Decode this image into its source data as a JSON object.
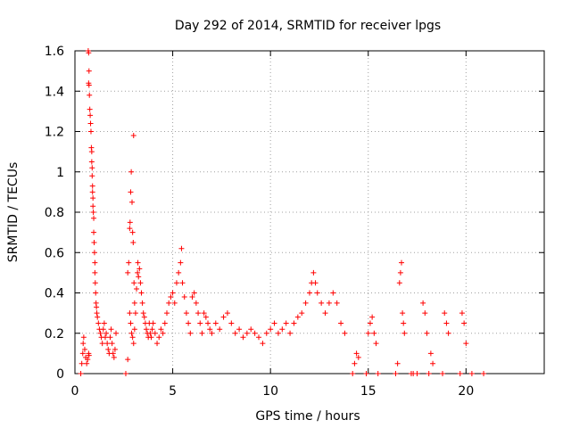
{
  "chart_data": {
    "type": "scatter",
    "title": "Day 292 of 2014, SRMTID for receiver lpgs",
    "xlabel": "GPS time / hours",
    "ylabel": "SRMTID / TECUs",
    "xlim": [
      0,
      24
    ],
    "ylim": [
      0,
      1.6
    ],
    "grid": true,
    "marker": "+",
    "marker_color": "#ff0000",
    "x_ticks": [
      0,
      5,
      10,
      15,
      20
    ],
    "x_tick_labels": [
      "0",
      "5",
      "10",
      "15",
      "20"
    ],
    "y_ticks": [
      0,
      0.2,
      0.4,
      0.6,
      0.8,
      1.0,
      1.2,
      1.4,
      1.6
    ],
    "y_tick_labels": [
      "0",
      "0.2",
      "0.4",
      "0.6",
      "0.8",
      "1",
      "1.2",
      "1.4",
      "1.6"
    ],
    "series": [
      {
        "name": "lpgs",
        "points": [
          [
            0.3,
            0.0
          ],
          [
            0.35,
            0.05
          ],
          [
            0.4,
            0.1
          ],
          [
            0.42,
            0.15
          ],
          [
            0.45,
            0.18
          ],
          [
            0.5,
            0.12
          ],
          [
            0.55,
            0.08
          ],
          [
            0.6,
            0.05
          ],
          [
            0.65,
            0.07
          ],
          [
            0.7,
            0.1
          ],
          [
            0.72,
            0.09
          ],
          [
            0.68,
            1.6
          ],
          [
            0.7,
            1.59
          ],
          [
            0.72,
            1.5
          ],
          [
            0.7,
            1.44
          ],
          [
            0.72,
            1.43
          ],
          [
            0.74,
            1.38
          ],
          [
            0.76,
            1.31
          ],
          [
            0.78,
            1.28
          ],
          [
            0.8,
            1.24
          ],
          [
            0.82,
            1.2
          ],
          [
            0.84,
            1.12
          ],
          [
            0.86,
            1.1
          ],
          [
            0.86,
            1.05
          ],
          [
            0.88,
            1.02
          ],
          [
            0.88,
            0.98
          ],
          [
            0.9,
            0.93
          ],
          [
            0.9,
            0.9
          ],
          [
            0.92,
            0.87
          ],
          [
            0.92,
            0.83
          ],
          [
            0.94,
            0.8
          ],
          [
            0.96,
            0.77
          ],
          [
            0.96,
            0.7
          ],
          [
            0.98,
            0.65
          ],
          [
            1.0,
            0.6
          ],
          [
            1.02,
            0.55
          ],
          [
            1.02,
            0.5
          ],
          [
            1.04,
            0.45
          ],
          [
            1.06,
            0.4
          ],
          [
            1.08,
            0.35
          ],
          [
            1.1,
            0.33
          ],
          [
            1.12,
            0.3
          ],
          [
            1.15,
            0.28
          ],
          [
            1.2,
            0.25
          ],
          [
            1.25,
            0.22
          ],
          [
            1.3,
            0.2
          ],
          [
            1.35,
            0.18
          ],
          [
            1.4,
            0.15
          ],
          [
            1.45,
            0.22
          ],
          [
            1.5,
            0.25
          ],
          [
            1.55,
            0.18
          ],
          [
            1.6,
            0.2
          ],
          [
            1.65,
            0.15
          ],
          [
            1.7,
            0.12
          ],
          [
            1.75,
            0.1
          ],
          [
            1.8,
            0.18
          ],
          [
            1.85,
            0.22
          ],
          [
            1.9,
            0.15
          ],
          [
            1.95,
            0.1
          ],
          [
            2.0,
            0.08
          ],
          [
            2.05,
            0.12
          ],
          [
            2.1,
            0.2
          ],
          [
            2.6,
            0.0
          ],
          [
            2.7,
            0.07
          ],
          [
            2.7,
            0.5
          ],
          [
            2.75,
            0.55
          ],
          [
            2.8,
            0.72
          ],
          [
            2.82,
            0.75
          ],
          [
            2.85,
            0.9
          ],
          [
            2.88,
            1.0
          ],
          [
            2.92,
            0.85
          ],
          [
            2.95,
            0.7
          ],
          [
            2.98,
            0.65
          ],
          [
            3.0,
            1.18
          ],
          [
            3.02,
            0.45
          ],
          [
            3.05,
            0.35
          ],
          [
            2.8,
            0.3
          ],
          [
            2.85,
            0.25
          ],
          [
            2.9,
            0.2
          ],
          [
            2.95,
            0.18
          ],
          [
            3.0,
            0.15
          ],
          [
            3.05,
            0.22
          ],
          [
            3.1,
            0.3
          ],
          [
            3.15,
            0.42
          ],
          [
            3.2,
            0.5
          ],
          [
            3.22,
            0.55
          ],
          [
            3.25,
            0.48
          ],
          [
            3.3,
            0.52
          ],
          [
            3.35,
            0.45
          ],
          [
            3.4,
            0.4
          ],
          [
            3.45,
            0.35
          ],
          [
            3.5,
            0.3
          ],
          [
            3.55,
            0.28
          ],
          [
            3.6,
            0.25
          ],
          [
            3.65,
            0.22
          ],
          [
            3.7,
            0.2
          ],
          [
            3.75,
            0.18
          ],
          [
            3.8,
            0.25
          ],
          [
            3.85,
            0.2
          ],
          [
            3.9,
            0.18
          ],
          [
            3.95,
            0.22
          ],
          [
            4.0,
            0.25
          ],
          [
            4.1,
            0.2
          ],
          [
            4.2,
            0.15
          ],
          [
            4.3,
            0.18
          ],
          [
            4.4,
            0.22
          ],
          [
            4.5,
            0.2
          ],
          [
            4.6,
            0.25
          ],
          [
            4.7,
            0.3
          ],
          [
            4.8,
            0.35
          ],
          [
            4.9,
            0.38
          ],
          [
            5.0,
            0.4
          ],
          [
            5.1,
            0.35
          ],
          [
            5.2,
            0.45
          ],
          [
            5.3,
            0.5
          ],
          [
            5.4,
            0.55
          ],
          [
            5.45,
            0.62
          ],
          [
            5.5,
            0.45
          ],
          [
            5.6,
            0.38
          ],
          [
            5.7,
            0.3
          ],
          [
            5.8,
            0.25
          ],
          [
            5.9,
            0.2
          ],
          [
            6.0,
            0.38
          ],
          [
            6.1,
            0.4
          ],
          [
            6.2,
            0.35
          ],
          [
            6.3,
            0.3
          ],
          [
            6.4,
            0.25
          ],
          [
            6.5,
            0.2
          ],
          [
            6.6,
            0.3
          ],
          [
            6.7,
            0.28
          ],
          [
            6.8,
            0.25
          ],
          [
            6.9,
            0.22
          ],
          [
            7.0,
            0.2
          ],
          [
            7.2,
            0.25
          ],
          [
            7.4,
            0.22
          ],
          [
            7.6,
            0.28
          ],
          [
            7.8,
            0.3
          ],
          [
            8.0,
            0.25
          ],
          [
            8.2,
            0.2
          ],
          [
            8.4,
            0.22
          ],
          [
            8.6,
            0.18
          ],
          [
            8.8,
            0.2
          ],
          [
            9.0,
            0.22
          ],
          [
            9.2,
            0.2
          ],
          [
            9.4,
            0.18
          ],
          [
            9.6,
            0.15
          ],
          [
            9.8,
            0.2
          ],
          [
            10.0,
            0.22
          ],
          [
            10.2,
            0.25
          ],
          [
            10.4,
            0.2
          ],
          [
            10.6,
            0.22
          ],
          [
            10.8,
            0.25
          ],
          [
            11.0,
            0.2
          ],
          [
            11.2,
            0.25
          ],
          [
            11.4,
            0.28
          ],
          [
            11.6,
            0.3
          ],
          [
            11.8,
            0.35
          ],
          [
            12.0,
            0.4
          ],
          [
            12.1,
            0.45
          ],
          [
            12.2,
            0.5
          ],
          [
            12.3,
            0.45
          ],
          [
            12.4,
            0.4
          ],
          [
            12.6,
            0.35
          ],
          [
            12.8,
            0.3
          ],
          [
            13.0,
            0.35
          ],
          [
            13.2,
            0.4
          ],
          [
            13.4,
            0.35
          ],
          [
            13.6,
            0.25
          ],
          [
            13.8,
            0.2
          ],
          [
            14.2,
            0.0
          ],
          [
            14.3,
            0.05
          ],
          [
            14.4,
            0.1
          ],
          [
            14.5,
            0.08
          ],
          [
            14.9,
            0.0
          ],
          [
            15.0,
            0.2
          ],
          [
            15.1,
            0.25
          ],
          [
            15.2,
            0.28
          ],
          [
            15.3,
            0.2
          ],
          [
            15.4,
            0.15
          ],
          [
            15.5,
            0.0
          ],
          [
            16.4,
            0.0
          ],
          [
            16.5,
            0.05
          ],
          [
            16.6,
            0.45
          ],
          [
            16.65,
            0.5
          ],
          [
            16.7,
            0.55
          ],
          [
            16.75,
            0.3
          ],
          [
            16.8,
            0.25
          ],
          [
            16.85,
            0.2
          ],
          [
            17.2,
            0.0
          ],
          [
            17.3,
            0.0
          ],
          [
            17.5,
            0.0
          ],
          [
            17.8,
            0.35
          ],
          [
            17.9,
            0.3
          ],
          [
            18.0,
            0.2
          ],
          [
            18.1,
            0.0
          ],
          [
            18.2,
            0.1
          ],
          [
            18.3,
            0.05
          ],
          [
            18.8,
            0.0
          ],
          [
            18.9,
            0.3
          ],
          [
            19.0,
            0.25
          ],
          [
            19.1,
            0.2
          ],
          [
            19.7,
            0.0
          ],
          [
            19.8,
            0.3
          ],
          [
            19.9,
            0.25
          ],
          [
            20.0,
            0.15
          ],
          [
            20.3,
            0.0
          ],
          [
            20.9,
            0.0
          ]
        ]
      }
    ]
  }
}
